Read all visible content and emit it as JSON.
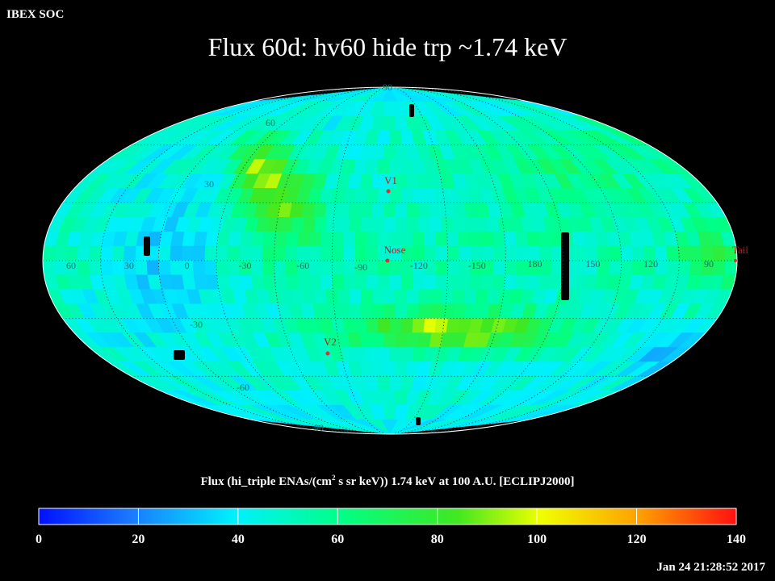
{
  "header": {
    "soc_label": "IBEX SOC",
    "title": "Flux   60d: hv60 hide trp ~1.74 keV"
  },
  "map": {
    "projection": "Mollweide-like all-sky map",
    "grid_labels": {
      "lat_top": "90",
      "lat_60": "60",
      "lat_30": "30",
      "lat_m30": "-30",
      "lat_m60": "-60",
      "lat_bottom": "-90"
    },
    "lon_labels": [
      "60",
      "30",
      "0",
      "-30",
      "-60",
      "-90",
      "-120",
      "-150",
      "180",
      "150",
      "120",
      "90"
    ],
    "markers": [
      {
        "label": "V1",
        "color": "#e03030"
      },
      {
        "label": "Nose",
        "color": "#e03030"
      },
      {
        "label": "V2",
        "color": "#e03030"
      },
      {
        "label": "Tail",
        "color": "#e03030"
      }
    ]
  },
  "colorbar": {
    "caption_pre": "Flux (hi_triple ENAs/(cm",
    "caption_sup": "2",
    "caption_post": " s sr keV))  1.74 keV at 100 A.U. [ECLIPJ2000]",
    "min": 0,
    "max": 140,
    "ticks": [
      "0",
      "20",
      "40",
      "60",
      "80",
      "100",
      "120",
      "140"
    ]
  },
  "footer": {
    "timestamp": "Jan 24 21:28:52 2017"
  }
}
